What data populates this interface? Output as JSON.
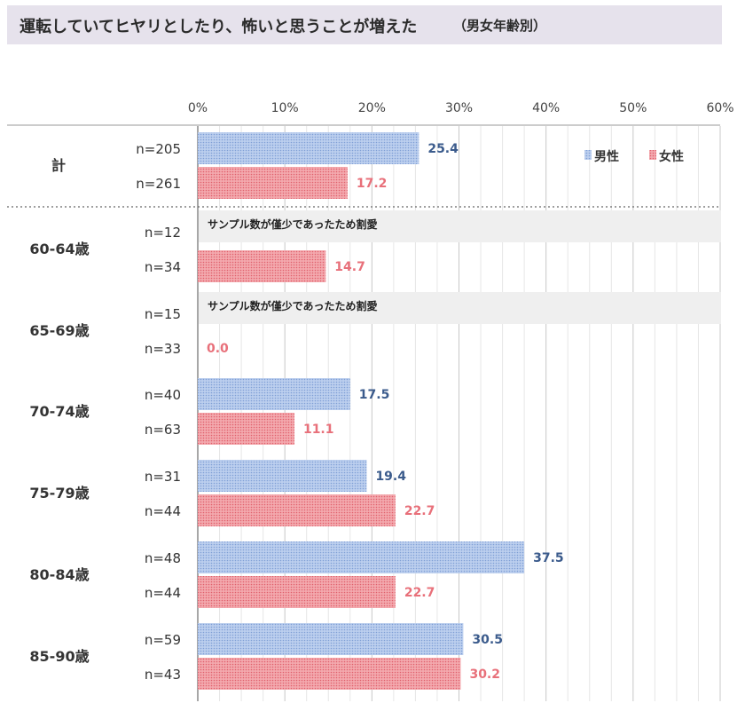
{
  "title": "運転していてヒヤリとしたり、怖いと思うことが増えた",
  "subtitle": "（男女年齢別）",
  "chart_data": {
    "type": "bar",
    "orientation": "horizontal",
    "x_ticks": [
      "0%",
      "10%",
      "20%",
      "30%",
      "40%",
      "50%",
      "60%"
    ],
    "xlim": [
      0,
      60
    ],
    "legend": {
      "position": "top-right",
      "male_label": "男性",
      "female_label": "女性"
    },
    "colors": {
      "male": "#a9c0e8",
      "female": "#ee8f96",
      "male_text": "#3b5b8c",
      "female_text": "#e8707a"
    },
    "omitted_text": "サンプル数が僅少であったため割愛",
    "groups": [
      {
        "label": "計",
        "n_male": "n=205",
        "n_female": "n=261",
        "male": 25.4,
        "female": 17.2,
        "male_label": "25.4",
        "female_label": "17.2",
        "male_omitted": false
      },
      {
        "label": "60-64歳",
        "n_male": "n=12",
        "n_female": "n=34",
        "male": null,
        "female": 14.7,
        "male_label": "",
        "female_label": "14.7",
        "male_omitted": true
      },
      {
        "label": "65-69歳",
        "n_male": "n=15",
        "n_female": "n=33",
        "male": null,
        "female": 0.0,
        "male_label": "",
        "female_label": "0.0",
        "male_omitted": true
      },
      {
        "label": "70-74歳",
        "n_male": "n=40",
        "n_female": "n=63",
        "male": 17.5,
        "female": 11.1,
        "male_label": "17.5",
        "female_label": "11.1",
        "male_omitted": false
      },
      {
        "label": "75-79歳",
        "n_male": "n=31",
        "n_female": "n=44",
        "male": 19.4,
        "female": 22.7,
        "male_label": "19.4",
        "female_label": "22.7",
        "male_omitted": false
      },
      {
        "label": "80-84歳",
        "n_male": "n=48",
        "n_female": "n=44",
        "male": 37.5,
        "female": 22.7,
        "male_label": "37.5",
        "female_label": "22.7",
        "male_omitted": false
      },
      {
        "label": "85-90歳",
        "n_male": "n=59",
        "n_female": "n=43",
        "male": 30.5,
        "female": 30.2,
        "male_label": "30.5",
        "female_label": "30.2",
        "male_omitted": false
      }
    ]
  }
}
